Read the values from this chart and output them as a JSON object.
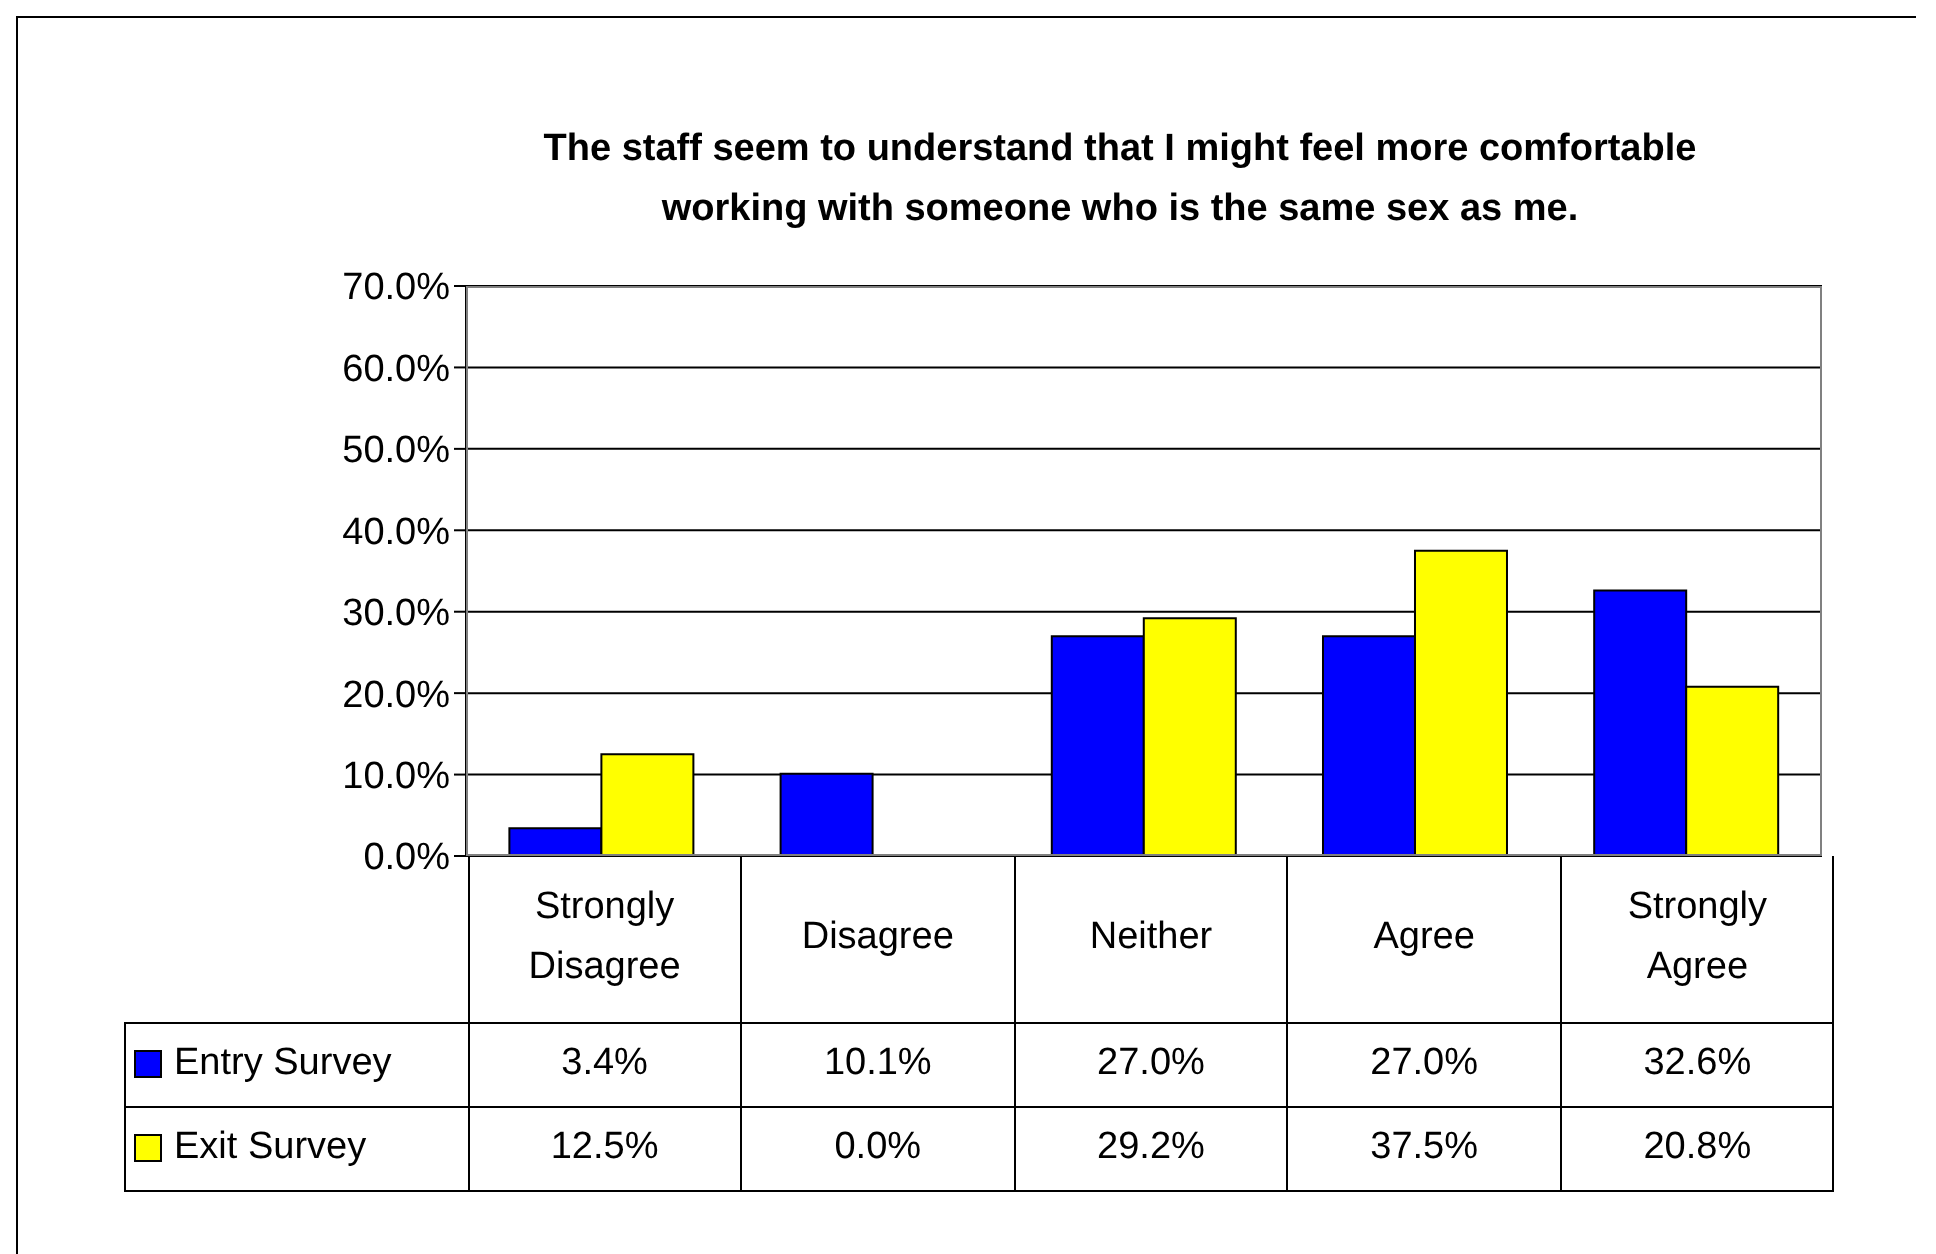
{
  "chart_data": {
    "type": "bar",
    "title": "The staff seem to understand that I might feel more comfortable working with someone who is the same sex as me.",
    "categories": [
      "Strongly Disagree",
      "Disagree",
      "Neither",
      "Agree",
      "Strongly Agree"
    ],
    "series": [
      {
        "name": "Entry Survey",
        "color": "#0000ff",
        "values": [
          3.4,
          10.1,
          27.0,
          27.0,
          32.6
        ],
        "value_labels": [
          "3.4%",
          "10.1%",
          "27.0%",
          "27.0%",
          "32.6%"
        ]
      },
      {
        "name": "Exit Survey",
        "color": "#ffff00",
        "values": [
          12.5,
          0.0,
          29.2,
          37.5,
          20.8
        ],
        "value_labels": [
          "12.5%",
          "0.0%",
          "29.2%",
          "37.5%",
          "20.8%"
        ]
      }
    ],
    "ylim": [
      0,
      70
    ],
    "yticks": [
      {
        "value": 0,
        "label": "0.0%"
      },
      {
        "value": 10,
        "label": "10.0%"
      },
      {
        "value": 20,
        "label": "20.0%"
      },
      {
        "value": 30,
        "label": "30.0%"
      },
      {
        "value": 40,
        "label": "40.0%"
      },
      {
        "value": 50,
        "label": "50.0%"
      },
      {
        "value": 60,
        "label": "60.0%"
      },
      {
        "value": 70,
        "label": "70.0%"
      }
    ],
    "grid": "y",
    "legend": "bottom"
  }
}
